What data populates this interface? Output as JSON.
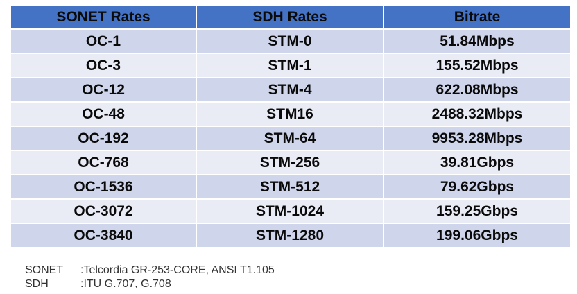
{
  "table": {
    "headers": [
      "SONET Rates",
      "SDH Rates",
      "Bitrate"
    ],
    "rows": [
      [
        "OC-1",
        "STM-0",
        "51.84Mbps"
      ],
      [
        "OC-3",
        "STM-1",
        "155.52Mbps"
      ],
      [
        "OC-12",
        "STM-4",
        "622.08Mbps"
      ],
      [
        "OC-48",
        "STM16",
        "2488.32Mbps"
      ],
      [
        "OC-192",
        "STM-64",
        "9953.28Mbps"
      ],
      [
        "OC-768",
        "STM-256",
        "39.81Gbps"
      ],
      [
        "OC-1536",
        "STM-512",
        "79.62Gbps"
      ],
      [
        "OC-3072",
        "STM-1024",
        "159.25Gbps"
      ],
      [
        "OC-3840",
        "STM-1280",
        "199.06Gbps"
      ]
    ]
  },
  "footnotes": [
    {
      "label": "SONET",
      "text": ":Telcordia GR-253-CORE, ANSI T1.105"
    },
    {
      "label": "SDH",
      "text": ":ITU G.707, G.708"
    }
  ],
  "colors": {
    "header_bg": "#4472c4",
    "row_odd_bg": "#cfd5ea",
    "row_even_bg": "#e9ebf5"
  }
}
